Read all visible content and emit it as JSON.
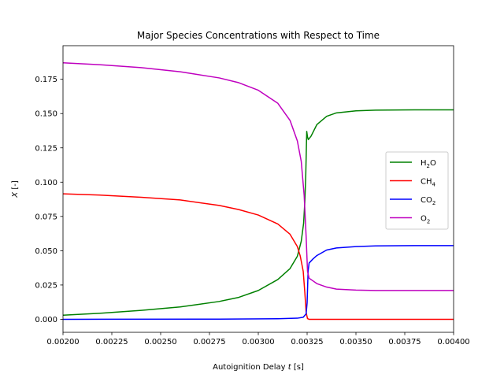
{
  "chart_data": {
    "type": "line",
    "title": "Major Species Concentrations with Respect to Time",
    "xlabel_prefix": "Autoignition Delay ",
    "xlabel_var": "t",
    "xlabel_suffix": " [s]",
    "ylabel_var": "X",
    "ylabel_suffix": " [-]",
    "xlim": [
      0.002,
      0.004
    ],
    "ylim": [
      -0.0095,
      0.1995
    ],
    "xticks": [
      0.002,
      0.00225,
      0.0025,
      0.00275,
      0.003,
      0.00325,
      0.0035,
      0.00375,
      0.004
    ],
    "xtick_labels": [
      "0.00200",
      "0.00225",
      "0.00250",
      "0.00275",
      "0.00300",
      "0.00325",
      "0.00350",
      "0.00375",
      "0.00400"
    ],
    "yticks": [
      0.0,
      0.025,
      0.05,
      0.075,
      0.1,
      0.125,
      0.15,
      0.175
    ],
    "ytick_labels": [
      "0.000",
      "0.025",
      "0.050",
      "0.075",
      "0.100",
      "0.125",
      "0.150",
      "0.175"
    ],
    "grid": false,
    "legend_position": "center-right",
    "series": [
      {
        "name": "H2O",
        "label_main": "H",
        "label_sub": "2",
        "label_tail": "O",
        "color": "#008000",
        "points": [
          [
            0.002,
            0.003
          ],
          [
            0.0022,
            0.0045
          ],
          [
            0.0024,
            0.0065
          ],
          [
            0.0026,
            0.009
          ],
          [
            0.0028,
            0.013
          ],
          [
            0.0029,
            0.016
          ],
          [
            0.003,
            0.021
          ],
          [
            0.0031,
            0.029
          ],
          [
            0.0031625,
            0.037
          ],
          [
            0.0032,
            0.046
          ],
          [
            0.00322,
            0.057
          ],
          [
            0.003232,
            0.07
          ],
          [
            0.003238,
            0.085
          ],
          [
            0.003243,
            0.105
          ],
          [
            0.003248,
            0.137
          ],
          [
            0.003252,
            0.133
          ],
          [
            0.003256,
            0.131
          ],
          [
            0.00327,
            0.1335
          ],
          [
            0.0033,
            0.142
          ],
          [
            0.00335,
            0.148
          ],
          [
            0.0034,
            0.1505
          ],
          [
            0.0035,
            0.152
          ],
          [
            0.0036,
            0.1525
          ],
          [
            0.0038,
            0.1527
          ],
          [
            0.004,
            0.1527
          ]
        ]
      },
      {
        "name": "CH4",
        "label_main": "CH",
        "label_sub": "4",
        "label_tail": "",
        "color": "#ff0000",
        "points": [
          [
            0.002,
            0.0915
          ],
          [
            0.0022,
            0.0905
          ],
          [
            0.0024,
            0.089
          ],
          [
            0.0026,
            0.087
          ],
          [
            0.0028,
            0.083
          ],
          [
            0.0029,
            0.08
          ],
          [
            0.003,
            0.076
          ],
          [
            0.0031,
            0.0695
          ],
          [
            0.0031625,
            0.062
          ],
          [
            0.0032,
            0.053
          ],
          [
            0.003215,
            0.046
          ],
          [
            0.00323,
            0.035
          ],
          [
            0.003238,
            0.02
          ],
          [
            0.003245,
            0.005
          ],
          [
            0.003252,
            0.0005
          ],
          [
            0.00326,
            0.0
          ],
          [
            0.00335,
            0.0
          ],
          [
            0.0036,
            0.0
          ],
          [
            0.004,
            0.0
          ]
        ]
      },
      {
        "name": "CO2",
        "label_main": "CO",
        "label_sub": "2",
        "label_tail": "",
        "color": "#0000ff",
        "points": [
          [
            0.002,
            0.0
          ],
          [
            0.0028,
            0.0001
          ],
          [
            0.0031,
            0.0004
          ],
          [
            0.0032,
            0.0008
          ],
          [
            0.00323,
            0.0015
          ],
          [
            0.003245,
            0.004
          ],
          [
            0.00325,
            0.012
          ],
          [
            0.003255,
            0.035
          ],
          [
            0.00326,
            0.041
          ],
          [
            0.00328,
            0.044
          ],
          [
            0.0033,
            0.0465
          ],
          [
            0.00335,
            0.0505
          ],
          [
            0.0034,
            0.052
          ],
          [
            0.0035,
            0.053
          ],
          [
            0.0036,
            0.0535
          ],
          [
            0.0038,
            0.0537
          ],
          [
            0.004,
            0.0537
          ]
        ]
      },
      {
        "name": "O2",
        "label_main": "O",
        "label_sub": "2",
        "label_tail": "",
        "color": "#bf00bf",
        "points": [
          [
            0.002,
            0.187
          ],
          [
            0.0022,
            0.1855
          ],
          [
            0.0024,
            0.1835
          ],
          [
            0.0026,
            0.1805
          ],
          [
            0.0028,
            0.176
          ],
          [
            0.0029,
            0.1725
          ],
          [
            0.003,
            0.167
          ],
          [
            0.0031,
            0.1575
          ],
          [
            0.0031625,
            0.145
          ],
          [
            0.0032,
            0.13
          ],
          [
            0.00322,
            0.115
          ],
          [
            0.003235,
            0.09
          ],
          [
            0.003245,
            0.06
          ],
          [
            0.003252,
            0.035
          ],
          [
            0.00326,
            0.03
          ],
          [
            0.00328,
            0.028
          ],
          [
            0.0033,
            0.026
          ],
          [
            0.00335,
            0.0235
          ],
          [
            0.0034,
            0.022
          ],
          [
            0.0035,
            0.0213
          ],
          [
            0.0036,
            0.021
          ],
          [
            0.004,
            0.021
          ]
        ]
      }
    ]
  }
}
